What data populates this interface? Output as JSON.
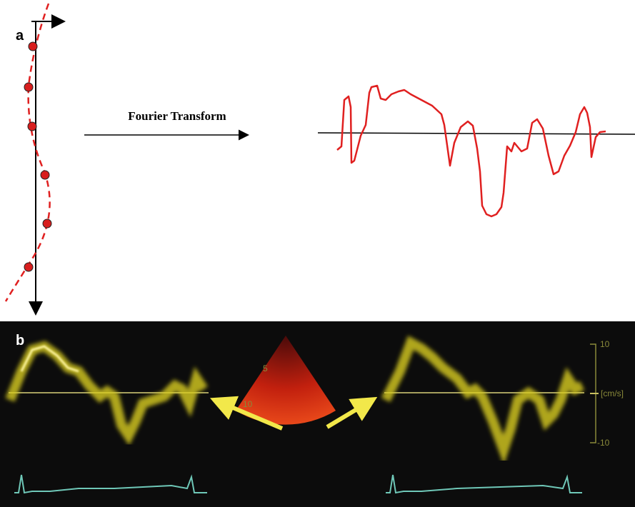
{
  "panel_a": {
    "label": "a",
    "arrow_label": "Fourier Transform"
  },
  "panel_b": {
    "label": "b",
    "depth_labels": [
      "5",
      "10"
    ],
    "scale_labels": [
      "10",
      "[cm/s]",
      "-10"
    ]
  }
}
